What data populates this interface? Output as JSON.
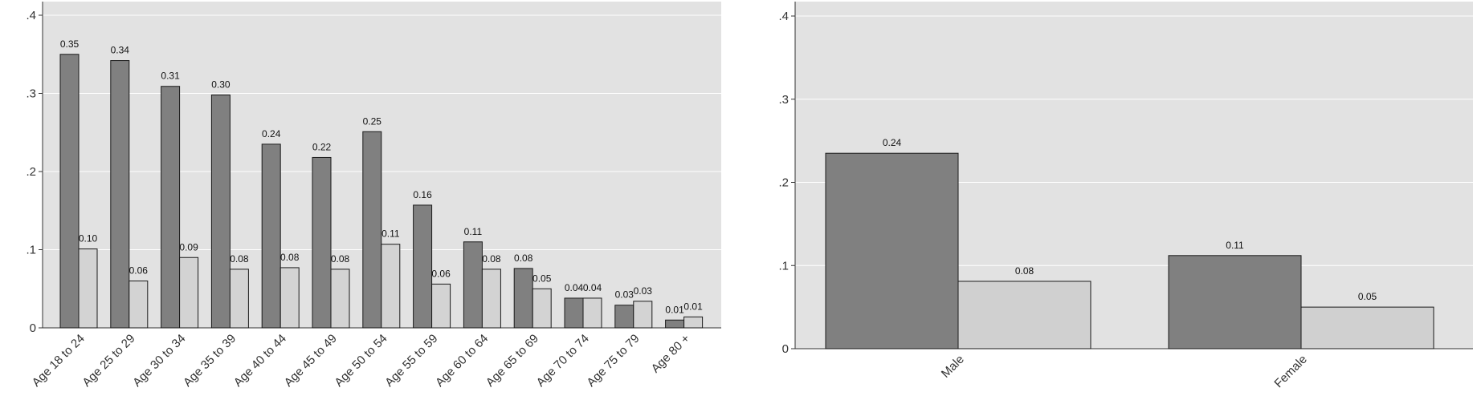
{
  "chart_data": [
    {
      "type": "bar",
      "categories": [
        "Age 18 to 24",
        "Age 25 to 29",
        "Age 30 to 34",
        "Age 35 to 39",
        "Age 40 to 44",
        "Age 45 to 49",
        "Age 50 to 54",
        "Age 55 to 59",
        "Age 60 to 64",
        "Age 65 to 69",
        "Age 70 to 74",
        "Age 75 to 79",
        "Age 80 +"
      ],
      "series": [
        {
          "values": [
            0.35,
            0.342,
            0.309,
            0.298,
            0.235,
            0.218,
            0.251,
            0.157,
            0.11,
            0.076,
            0.038,
            0.029,
            0.01
          ],
          "labels": [
            "0.35",
            "0.34",
            "0.31",
            "0.30",
            "0.24",
            "0.22",
            "0.25",
            "0.16",
            "0.11",
            "0.08",
            "0.04",
            "0.03",
            "0.01"
          ],
          "color": "#808080"
        },
        {
          "values": [
            0.101,
            0.06,
            0.09,
            0.075,
            0.077,
            0.075,
            0.107,
            0.056,
            0.075,
            0.05,
            0.038,
            0.034,
            0.014
          ],
          "labels": [
            "0.10",
            "0.06",
            "0.09",
            "0.08",
            "0.08",
            "0.08",
            "0.11",
            "0.06",
            "0.08",
            "0.05",
            "0.04",
            "0.03",
            "0.01"
          ],
          "color": "#d3d3d3"
        }
      ],
      "yticks": [
        0,
        0.1,
        0.2,
        0.3,
        0.4
      ],
      "yticklabels": [
        "0",
        ".1",
        ".2",
        ".3",
        ".4"
      ],
      "ylim": [
        0,
        0.4
      ],
      "grid": true,
      "background": "#e2e2e2"
    },
    {
      "type": "bar",
      "categories": [
        "Male",
        "Female"
      ],
      "series": [
        {
          "values": [
            0.235,
            0.112
          ],
          "labels": [
            "0.24",
            "0.11"
          ],
          "color": "#808080"
        },
        {
          "values": [
            0.081,
            0.05
          ],
          "labels": [
            "0.08",
            "0.05"
          ],
          "color": "#d0d0d0"
        }
      ],
      "yticks": [
        0,
        0.1,
        0.2,
        0.3,
        0.4
      ],
      "yticklabels": [
        "0",
        ".1",
        ".2",
        ".3",
        ".4"
      ],
      "ylim": [
        0,
        0.4
      ],
      "grid": true,
      "background": "#e2e2e2"
    }
  ]
}
